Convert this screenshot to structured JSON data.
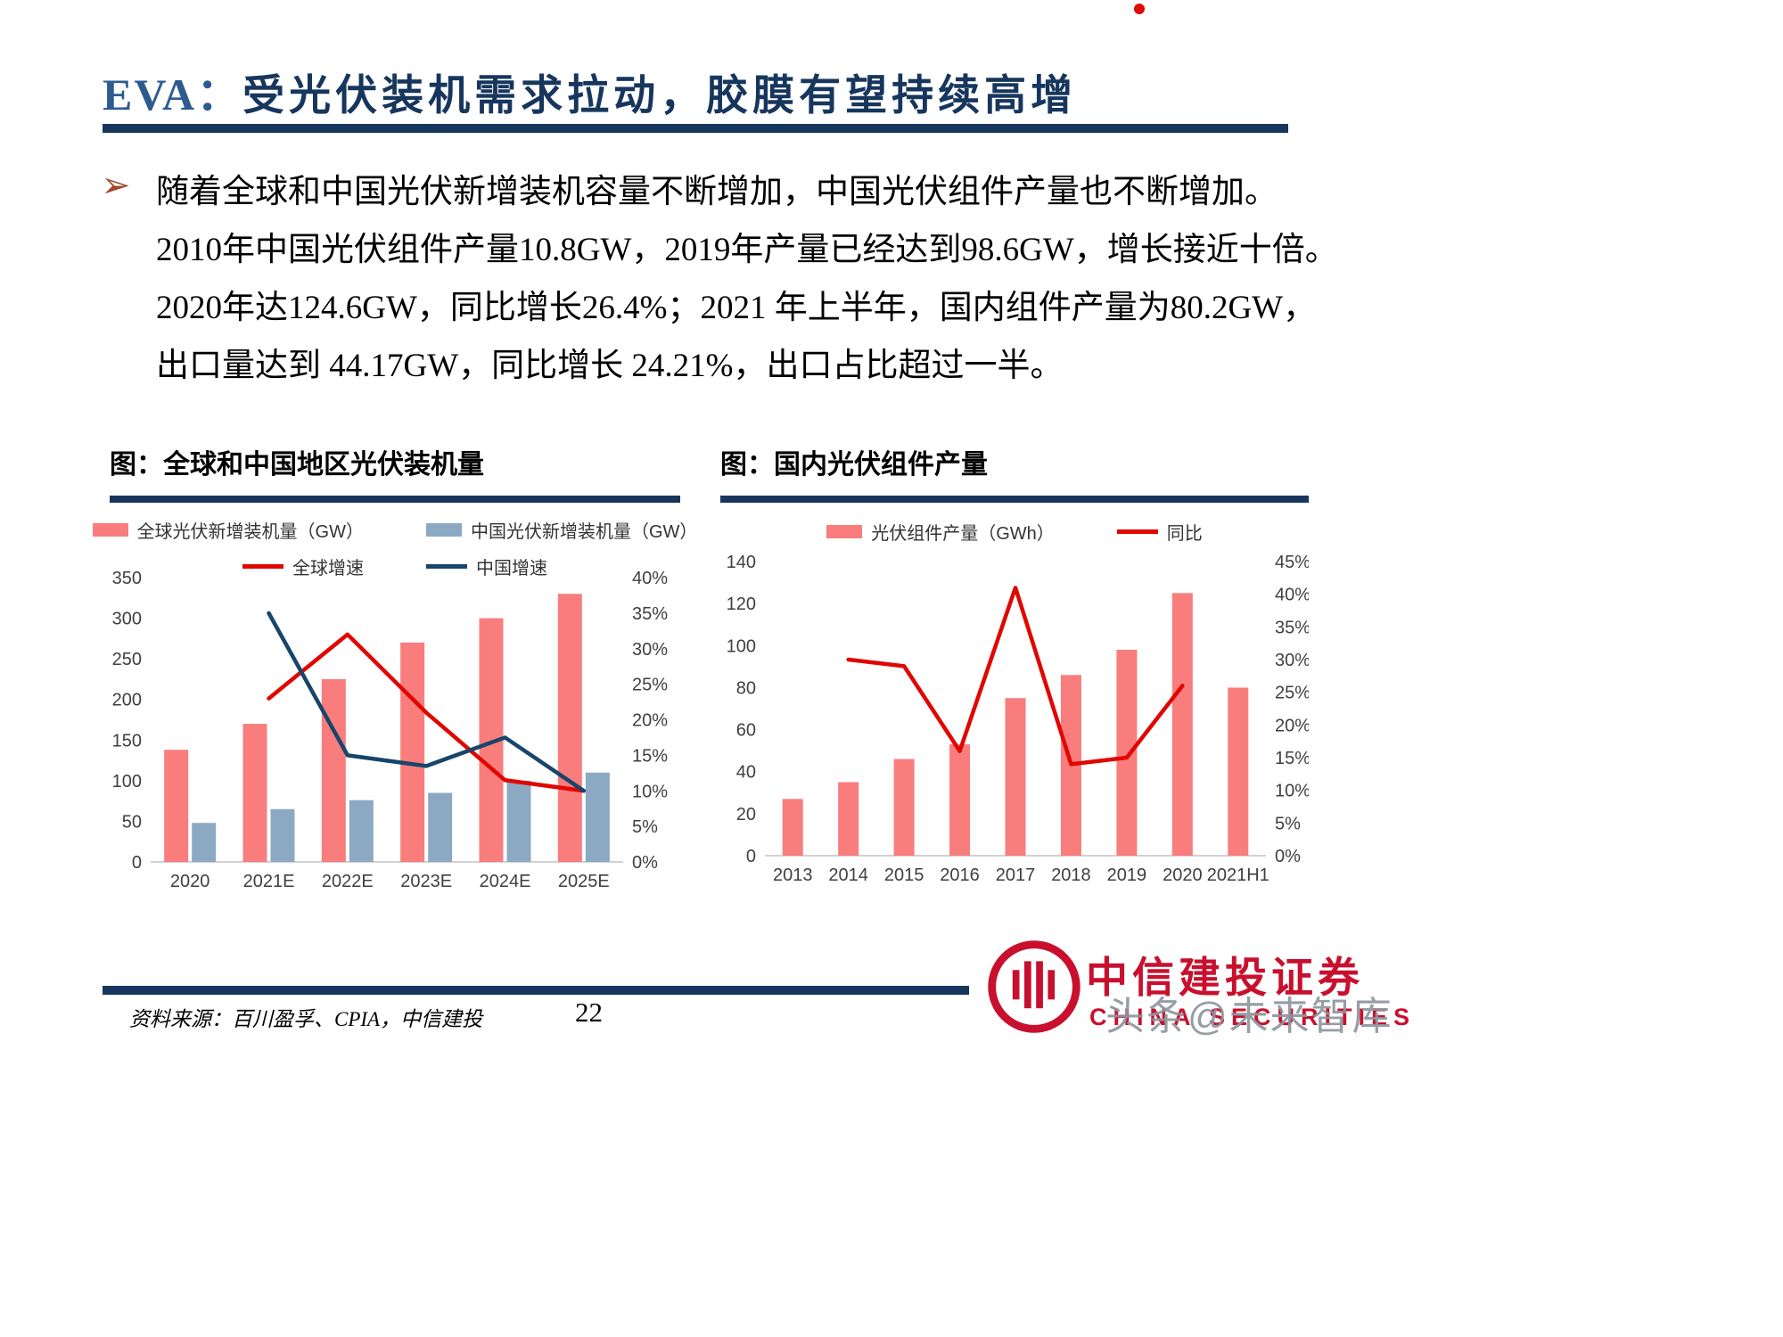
{
  "header": {
    "prefix": "EVA：",
    "title": "受光伏装机需求拉动，胶膜有望持续高增"
  },
  "bullet_marker": "➢",
  "body": {
    "lines": [
      "随着全球和中国光伏新增装机容量不断增加，中国光伏组件产量也不断增加。",
      "2010年中国光伏组件产量10.8GW，2019年产量已经达到98.6GW，增长接近十倍。",
      "2020年达124.6GW，同比增长26.4%；2021 年上半年，国内组件产量为80.2GW，",
      "出口量达到 44.17GW，同比增长 24.21%，出口占比超过一半。"
    ]
  },
  "chart_data": [
    {
      "type": "bar+line",
      "caption": "图：全球和中国地区光伏装机量",
      "categories": [
        "2020",
        "2021E",
        "2022E",
        "2023E",
        "2024E",
        "2025E"
      ],
      "bar_series": [
        {
          "name": "全球光伏新增装机量（GW）",
          "color": "#F97D7D",
          "axis": "left",
          "values": [
            138,
            170,
            225,
            270,
            300,
            330
          ]
        },
        {
          "name": "中国光伏新增装机量（GW）",
          "color": "#8CA9C4",
          "axis": "left",
          "values": [
            48,
            65,
            76,
            85,
            100,
            110
          ]
        }
      ],
      "line_series": [
        {
          "name": "全球增速",
          "color": "#E10600",
          "axis": "right",
          "values": [
            null,
            23,
            32,
            21,
            11.5,
            10
          ]
        },
        {
          "name": "中国增速",
          "color": "#17456B",
          "axis": "right",
          "values": [
            null,
            35,
            15,
            13.5,
            17.5,
            10
          ]
        }
      ],
      "y_left": {
        "min": 0,
        "max": 350,
        "step": 50
      },
      "y_right": {
        "min": 0,
        "max": 40,
        "step": 5,
        "suffix": "%"
      },
      "grid": false,
      "legend_position": "top"
    },
    {
      "type": "bar+line",
      "caption": "图：国内光伏组件产量",
      "categories": [
        "2013",
        "2014",
        "2015",
        "2016",
        "2017",
        "2018",
        "2019",
        "2020",
        "2021H1"
      ],
      "bar_series": [
        {
          "name": "光伏组件产量（GWh）",
          "color": "#F97D7D",
          "axis": "left",
          "values": [
            27,
            35,
            46,
            53,
            75,
            86,
            98,
            125,
            80
          ]
        }
      ],
      "line_series": [
        {
          "name": "同比",
          "color": "#E10600",
          "axis": "right",
          "values": [
            null,
            30,
            29,
            16,
            41,
            14,
            15,
            26,
            null
          ]
        }
      ],
      "y_left": {
        "min": 0,
        "max": 140,
        "step": 20
      },
      "y_right": {
        "min": 0,
        "max": 45,
        "step": 5,
        "suffix": "%"
      },
      "grid": false,
      "legend_position": "top"
    }
  ],
  "footer": {
    "source": "资料来源：百川盈孚、CPIA，中信建投",
    "page": "22"
  },
  "brand": {
    "name": "中信建投证券",
    "name_en": "CHINA SECURITIES",
    "logo_color": "#C8102E",
    "watermark": "头条@未来智库"
  },
  "colors": {
    "accent_navy": "#17365D",
    "bar_pink": "#F97D7D",
    "bar_blue": "#8CA9C4",
    "line_red": "#E10600",
    "line_navy": "#17456B"
  }
}
